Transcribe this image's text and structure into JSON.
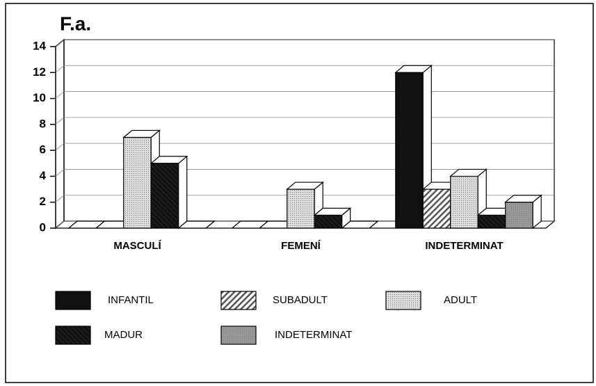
{
  "chart_data": {
    "type": "bar3d",
    "title": "F.a.",
    "categories": [
      "MASCULÍ",
      "FEMENÍ",
      "INDETERMINAT"
    ],
    "series": [
      {
        "name": "INFANTIL",
        "color": "#111111",
        "pattern": "solid",
        "values": [
          0,
          0,
          12
        ]
      },
      {
        "name": "SUBADULT",
        "color": "#555555",
        "pattern": "hatch",
        "values": [
          0,
          0,
          3
        ]
      },
      {
        "name": "ADULT",
        "color": "#dddddd",
        "pattern": "dots",
        "values": [
          7,
          3,
          4
        ]
      },
      {
        "name": "MADUR",
        "color": "#222222",
        "pattern": "darkhatch",
        "values": [
          5,
          1,
          1
        ]
      },
      {
        "name": "INDETERMINAT",
        "color": "#999999",
        "pattern": "dots",
        "values": [
          0,
          0,
          2
        ]
      }
    ],
    "ylim": [
      0,
      14
    ],
    "yticks": [
      0,
      2,
      4,
      6,
      8,
      10,
      12,
      14
    ],
    "grid": true
  }
}
